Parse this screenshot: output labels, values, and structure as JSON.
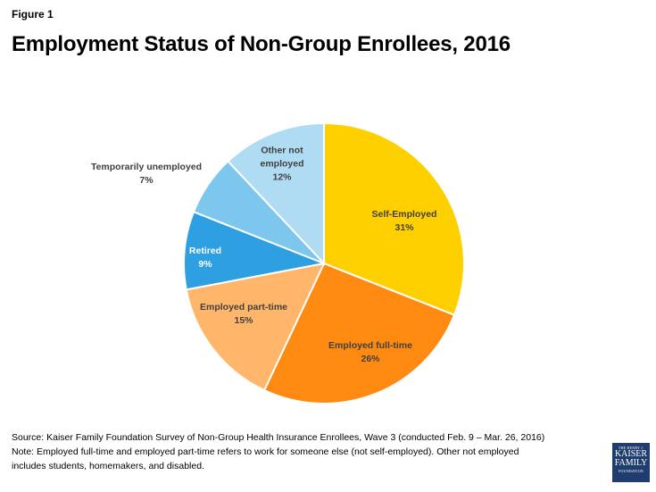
{
  "figure_label": "Figure 1",
  "title": "Employment Status of Non-Group Enrollees, 2016",
  "chart_data": {
    "type": "pie",
    "title": "Employment Status of Non-Group Enrollees, 2016",
    "categories": [
      "Self-Employed",
      "Employed full-time",
      "Employed part-time",
      "Retired",
      "Temporarily unemployed",
      "Other not employed"
    ],
    "values": [
      31,
      26,
      15,
      9,
      7,
      12
    ],
    "unit": "%",
    "colors": [
      "#FFD000",
      "#FF8A12",
      "#FFB66B",
      "#2E9FE0",
      "#7DC6EE",
      "#B0DCF3"
    ],
    "start_angle_deg": 0,
    "direction": "clockwise",
    "legend": "none (direct labels)"
  },
  "labels": [
    {
      "name": "Self-Employed",
      "pct": "31%"
    },
    {
      "name": "Employed full-time",
      "pct": "26%"
    },
    {
      "name": "Employed part-time",
      "pct": "15%"
    },
    {
      "name": "Retired",
      "pct": "9%"
    },
    {
      "name": "Temporarily unemployed",
      "pct": "7%"
    },
    {
      "name_line1": "Other not",
      "name_line2": "employed",
      "pct": "12%"
    }
  ],
  "source": "Source: Kaiser Family Foundation Survey of Non-Group Health Insurance Enrollees, Wave 3 (conducted Feb. 9 – Mar. 26, 2016)",
  "note_line1": "Note: Employed full-time and employed part-time refers to work for someone else (not self-employed). Other not employed",
  "note_line2": "includes students, homemakers, and disabled.",
  "logo": {
    "line1": "THE HENRY J.",
    "line2": "KAISER",
    "line3": "FAMILY",
    "line4": "FOUNDATION"
  }
}
